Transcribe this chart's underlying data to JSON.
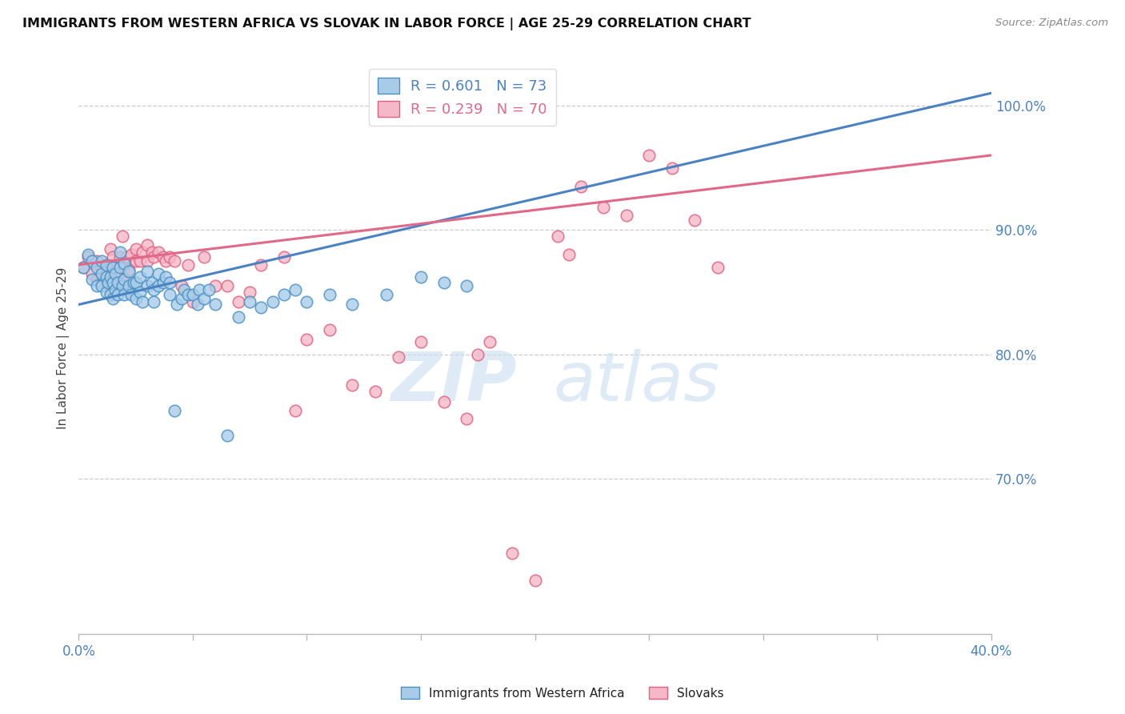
{
  "title": "IMMIGRANTS FROM WESTERN AFRICA VS SLOVAK IN LABOR FORCE | AGE 25-29 CORRELATION CHART",
  "source": "Source: ZipAtlas.com",
  "ylabel": "In Labor Force | Age 25-29",
  "yticks": [
    0.7,
    0.8,
    0.9,
    1.0
  ],
  "ytick_labels": [
    "70.0%",
    "80.0%",
    "90.0%",
    "100.0%"
  ],
  "xlim": [
    0.0,
    0.4
  ],
  "ylim": [
    0.575,
    1.035
  ],
  "legend_blue_R": "R = 0.601",
  "legend_blue_N": "N = 73",
  "legend_pink_R": "R = 0.239",
  "legend_pink_N": "N = 70",
  "blue_fill": "#a8cce8",
  "pink_fill": "#f5b8c8",
  "blue_edge": "#4a90c4",
  "pink_edge": "#e06080",
  "blue_line_color": "#4a82c4",
  "pink_line_color": "#e06888",
  "blue_scatter_x": [
    0.002,
    0.004,
    0.006,
    0.006,
    0.008,
    0.008,
    0.01,
    0.01,
    0.01,
    0.012,
    0.012,
    0.012,
    0.013,
    0.014,
    0.014,
    0.015,
    0.015,
    0.015,
    0.016,
    0.016,
    0.017,
    0.017,
    0.018,
    0.018,
    0.019,
    0.02,
    0.02,
    0.02,
    0.022,
    0.022,
    0.023,
    0.024,
    0.025,
    0.025,
    0.027,
    0.027,
    0.028,
    0.03,
    0.03,
    0.032,
    0.033,
    0.033,
    0.035,
    0.035,
    0.037,
    0.038,
    0.04,
    0.04,
    0.042,
    0.043,
    0.045,
    0.046,
    0.048,
    0.05,
    0.052,
    0.053,
    0.055,
    0.057,
    0.06,
    0.065,
    0.07,
    0.075,
    0.08,
    0.085,
    0.09,
    0.095,
    0.1,
    0.11,
    0.12,
    0.135,
    0.15,
    0.16,
    0.17
  ],
  "blue_scatter_y": [
    0.87,
    0.88,
    0.86,
    0.875,
    0.855,
    0.87,
    0.855,
    0.865,
    0.875,
    0.85,
    0.862,
    0.872,
    0.858,
    0.848,
    0.862,
    0.845,
    0.858,
    0.87,
    0.852,
    0.865,
    0.848,
    0.858,
    0.87,
    0.882,
    0.855,
    0.848,
    0.86,
    0.873,
    0.855,
    0.867,
    0.848,
    0.858,
    0.845,
    0.858,
    0.85,
    0.862,
    0.842,
    0.855,
    0.867,
    0.858,
    0.842,
    0.852,
    0.855,
    0.865,
    0.858,
    0.862,
    0.848,
    0.858,
    0.755,
    0.84,
    0.845,
    0.852,
    0.848,
    0.848,
    0.84,
    0.852,
    0.845,
    0.852,
    0.84,
    0.735,
    0.83,
    0.842,
    0.838,
    0.842,
    0.848,
    0.852,
    0.842,
    0.848,
    0.84,
    0.848,
    0.862,
    0.858,
    0.855
  ],
  "pink_scatter_x": [
    0.002,
    0.004,
    0.006,
    0.008,
    0.008,
    0.01,
    0.01,
    0.012,
    0.012,
    0.013,
    0.014,
    0.014,
    0.015,
    0.015,
    0.016,
    0.016,
    0.017,
    0.018,
    0.018,
    0.019,
    0.02,
    0.02,
    0.021,
    0.022,
    0.023,
    0.025,
    0.025,
    0.027,
    0.028,
    0.03,
    0.03,
    0.032,
    0.033,
    0.035,
    0.037,
    0.038,
    0.04,
    0.042,
    0.045,
    0.048,
    0.05,
    0.055,
    0.06,
    0.065,
    0.07,
    0.075,
    0.08,
    0.09,
    0.095,
    0.1,
    0.11,
    0.12,
    0.13,
    0.14,
    0.15,
    0.16,
    0.17,
    0.175,
    0.18,
    0.19,
    0.2,
    0.21,
    0.215,
    0.22,
    0.23,
    0.24,
    0.25,
    0.26,
    0.27,
    0.28
  ],
  "pink_scatter_y": [
    0.87,
    0.878,
    0.865,
    0.86,
    0.875,
    0.858,
    0.87,
    0.855,
    0.868,
    0.858,
    0.872,
    0.885,
    0.862,
    0.878,
    0.858,
    0.87,
    0.855,
    0.865,
    0.878,
    0.895,
    0.858,
    0.87,
    0.878,
    0.868,
    0.88,
    0.875,
    0.885,
    0.875,
    0.882,
    0.875,
    0.888,
    0.882,
    0.878,
    0.882,
    0.878,
    0.875,
    0.878,
    0.875,
    0.855,
    0.872,
    0.842,
    0.878,
    0.855,
    0.855,
    0.842,
    0.85,
    0.872,
    0.878,
    0.755,
    0.812,
    0.82,
    0.775,
    0.77,
    0.798,
    0.81,
    0.762,
    0.748,
    0.8,
    0.81,
    0.64,
    0.618,
    0.895,
    0.88,
    0.935,
    0.918,
    0.912,
    0.96,
    0.95,
    0.908,
    0.87
  ],
  "watermark_zip": "ZIP",
  "watermark_atlas": "atlas",
  "blue_line_x0": 0.0,
  "blue_line_x1": 0.4,
  "blue_line_y0": 0.84,
  "blue_line_y1": 1.01,
  "pink_line_x0": 0.0,
  "pink_line_x1": 0.4,
  "pink_line_y0": 0.872,
  "pink_line_y1": 0.96
}
